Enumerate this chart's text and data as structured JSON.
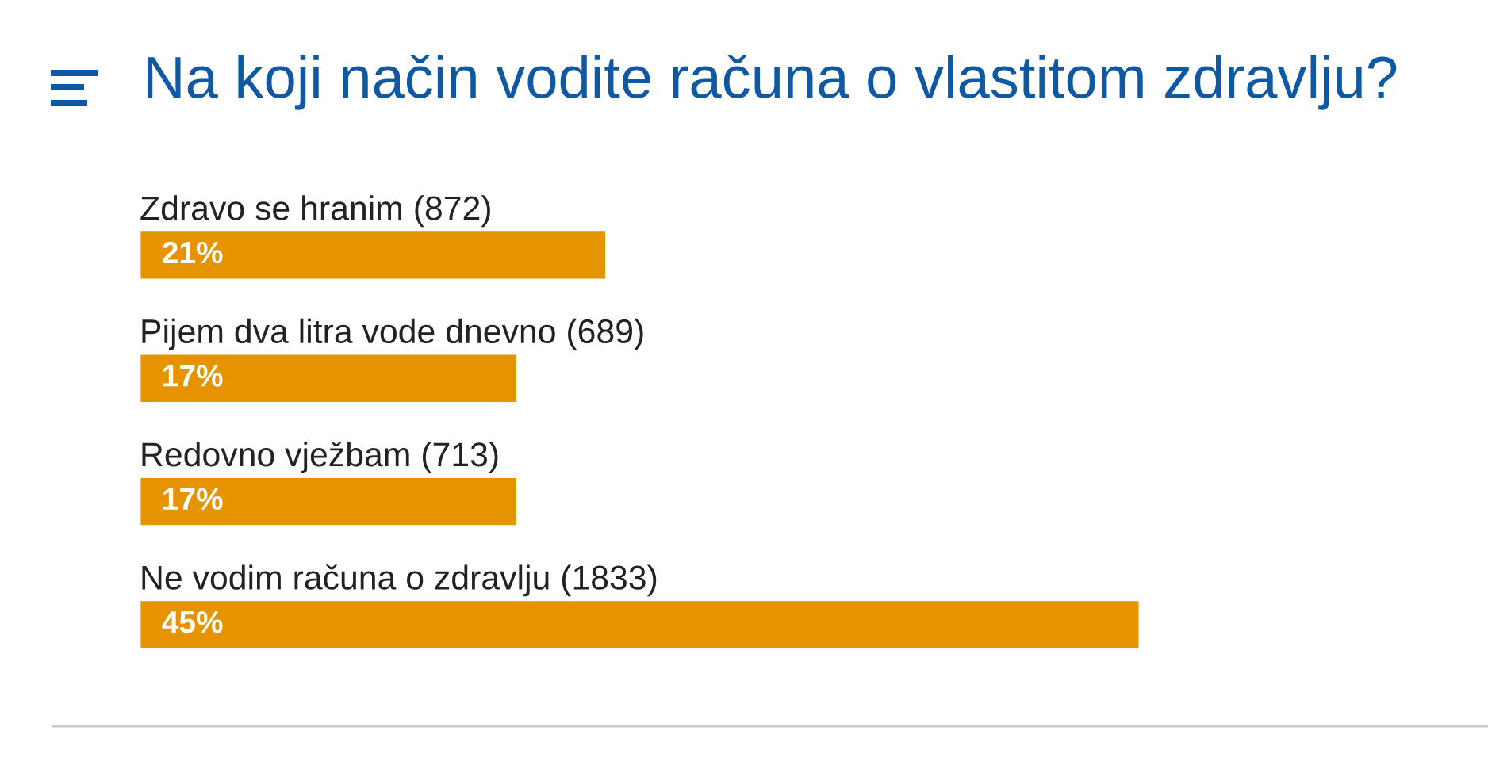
{
  "chart_data": {
    "type": "bar",
    "orientation": "horizontal",
    "title": "Na koji način vodite računa o vlastitom zdravlju?",
    "categories": [
      "Zdravo se hranim (872)",
      "Pijem dva litra vode dnevno (689)",
      "Redovno vježbam (713)",
      "Ne vodim računa o zdravlju (1833)"
    ],
    "values": [
      21,
      17,
      17,
      45
    ],
    "value_labels": [
      "21%",
      "17%",
      "17%",
      "45%"
    ],
    "color": "#e59400",
    "tick_labels": false
  }
}
